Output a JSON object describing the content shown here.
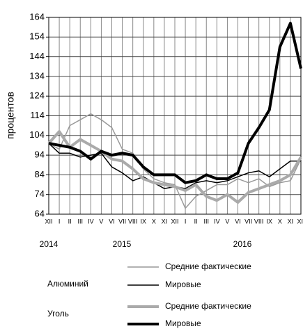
{
  "chart_data": {
    "type": "line",
    "y_label": "процентов",
    "categories": [
      "XII",
      "I",
      "II",
      "III",
      "IV",
      "V",
      "VI",
      "VII",
      "VIII",
      "IX",
      "X",
      "XI",
      "XII",
      "I",
      "II",
      "III",
      "IV",
      "V",
      "VI",
      "VII",
      "VIII",
      "IX",
      "X",
      "XI",
      "XII"
    ],
    "year_labels": [
      "2014",
      "2015",
      "2016"
    ],
    "ylim": [
      64,
      164
    ],
    "yticks": [
      64,
      74,
      84,
      94,
      104,
      114,
      124,
      134,
      144,
      154,
      164
    ],
    "grid": true,
    "legend_groups": [
      "Алюминий",
      "Уголь"
    ],
    "series": [
      {
        "name": "Средние фактические",
        "color": "#999999",
        "width": 1.5,
        "values": [
          100,
          97,
          109,
          112,
          115,
          112,
          108,
          97,
          95,
          87,
          82,
          80,
          79,
          67,
          73,
          76,
          79,
          79,
          82,
          80,
          82,
          78,
          80,
          81,
          92
        ]
      },
      {
        "name": "Мировые",
        "color": "#000000",
        "width": 1.5,
        "values": [
          100,
          95,
          95,
          93,
          94,
          95,
          88,
          85,
          81,
          83,
          80,
          77,
          78,
          77,
          80,
          81,
          80,
          81,
          83,
          85,
          86,
          83,
          87,
          91,
          91
        ]
      },
      {
        "name": "Средние фактические",
        "color": "#aaaaaa",
        "width": 4,
        "values": [
          100,
          106,
          98,
          102,
          99,
          96,
          92,
          91,
          87,
          82,
          80,
          79,
          78,
          76,
          79,
          73,
          71,
          74,
          70,
          75,
          77,
          79,
          81,
          84,
          93
        ]
      },
      {
        "name": "Мировые",
        "color": "#000000",
        "width": 4,
        "values": [
          100,
          99,
          98,
          96,
          92,
          96,
          94,
          95,
          94,
          88,
          84,
          84,
          84,
          80,
          81,
          84,
          82,
          82,
          85,
          100,
          108,
          117,
          149,
          161,
          138
        ]
      }
    ]
  }
}
